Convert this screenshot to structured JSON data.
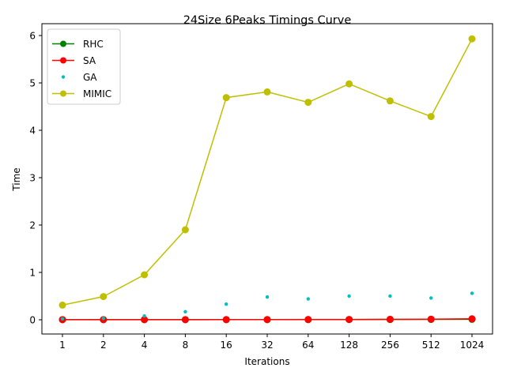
{
  "chart_data": {
    "type": "line",
    "title": "24Size 6Peaks Timings Curve",
    "xlabel": "Iterations",
    "ylabel": "Time",
    "categories": [
      "1",
      "2",
      "4",
      "8",
      "16",
      "32",
      "64",
      "128",
      "256",
      "512",
      "1024"
    ],
    "ylim": [
      -0.3,
      6.25
    ],
    "yticks": [
      0,
      1,
      2,
      3,
      4,
      5,
      6
    ],
    "grid": false,
    "legend_position": "upper-left",
    "series": [
      {
        "name": "RHC",
        "color": "#008000",
        "style": "line-marker",
        "values": [
          0.002,
          0.002,
          0.002,
          0.002,
          0.003,
          0.003,
          0.004,
          0.005,
          0.006,
          0.008,
          0.01
        ]
      },
      {
        "name": "SA",
        "color": "#ff0000",
        "style": "line-marker",
        "values": [
          0.003,
          0.003,
          0.003,
          0.003,
          0.004,
          0.005,
          0.006,
          0.007,
          0.01,
          0.013,
          0.02
        ]
      },
      {
        "name": "GA",
        "color": "#00bfbf",
        "style": "points",
        "values": [
          0.02,
          0.03,
          0.08,
          0.17,
          0.33,
          0.48,
          0.44,
          0.5,
          0.5,
          0.46,
          0.56
        ]
      },
      {
        "name": "MIMIC",
        "color": "#bfbf00",
        "style": "line-marker",
        "values": [
          0.31,
          0.49,
          0.95,
          1.9,
          4.69,
          4.81,
          4.59,
          4.98,
          4.62,
          4.29,
          5.93
        ]
      }
    ]
  }
}
